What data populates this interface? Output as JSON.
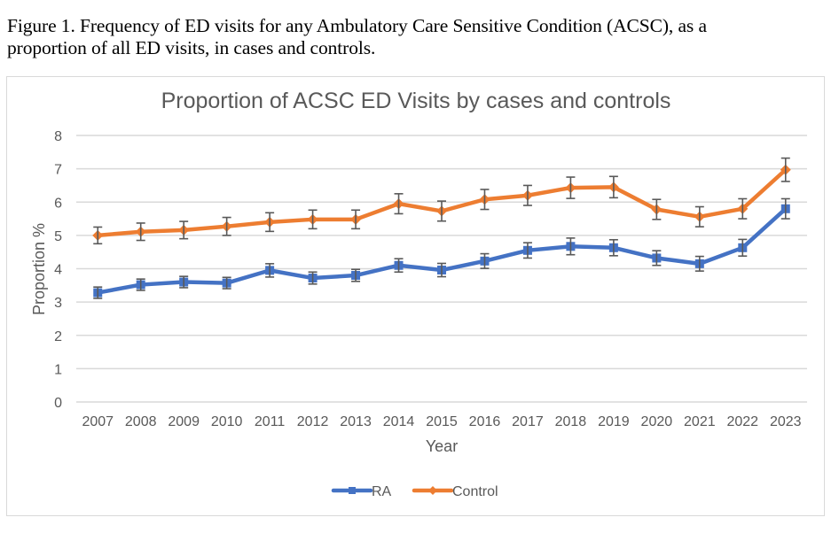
{
  "caption": {
    "line1": "Figure 1. Frequency of ED visits for any Ambulatory Care Sensitive Condition (ACSC), as a",
    "line2": "proportion of all ED visits, in cases and controls."
  },
  "chart_data": {
    "type": "line",
    "title": "Proportion of ACSC ED Visits by cases and controls",
    "xlabel": "Year",
    "ylabel": "Proportion %",
    "ylim": [
      0,
      8
    ],
    "yticks": [
      "0",
      "1",
      "2",
      "3",
      "4",
      "5",
      "6",
      "7",
      "8"
    ],
    "grid": true,
    "legend_position": "bottom",
    "categories": [
      "2007",
      "2008",
      "2009",
      "2010",
      "2011",
      "2012",
      "2013",
      "2014",
      "2015",
      "2016",
      "2017",
      "2018",
      "2019",
      "2020",
      "2021",
      "2022",
      "2023"
    ],
    "series": [
      {
        "name": "RA",
        "color": "#4472c4",
        "marker": "square",
        "values": [
          3.28,
          3.52,
          3.6,
          3.57,
          3.95,
          3.72,
          3.8,
          4.1,
          3.96,
          4.23,
          4.55,
          4.67,
          4.63,
          4.32,
          4.15,
          4.63,
          5.8
        ],
        "error": [
          0.17,
          0.17,
          0.17,
          0.17,
          0.2,
          0.18,
          0.18,
          0.2,
          0.2,
          0.22,
          0.23,
          0.25,
          0.24,
          0.22,
          0.22,
          0.25,
          0.3
        ]
      },
      {
        "name": "Control",
        "color": "#ed7d31",
        "marker": "diamond",
        "values": [
          5.0,
          5.11,
          5.16,
          5.27,
          5.4,
          5.48,
          5.48,
          5.95,
          5.73,
          6.08,
          6.2,
          6.43,
          6.45,
          5.78,
          5.56,
          5.8,
          6.97
        ],
        "error": [
          0.25,
          0.26,
          0.26,
          0.27,
          0.28,
          0.28,
          0.28,
          0.3,
          0.3,
          0.3,
          0.3,
          0.32,
          0.32,
          0.3,
          0.3,
          0.3,
          0.35
        ]
      }
    ],
    "errorbar_color": "#595959",
    "gridline_color": "#d9d9d9"
  }
}
